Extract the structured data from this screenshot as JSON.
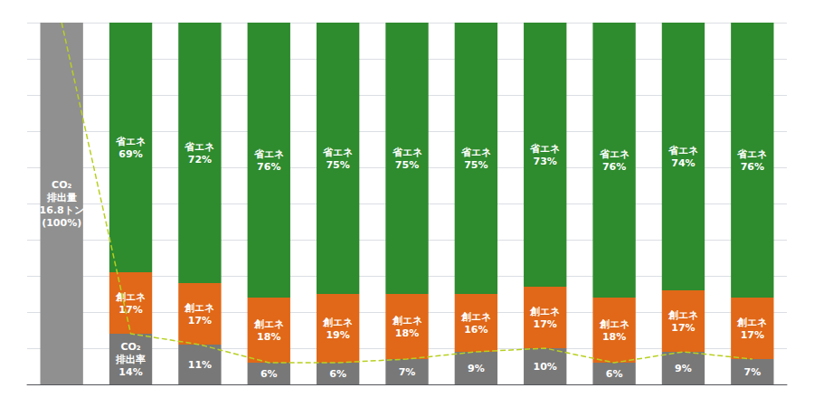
{
  "chart_data": {
    "type": "bar",
    "stacked": true,
    "grid": true,
    "tick_labels": false,
    "data_labels": true,
    "categories": [
      null,
      null,
      null,
      null,
      null,
      null,
      null,
      null,
      null,
      null,
      null
    ],
    "ylim": [
      0,
      100
    ],
    "yticks": [
      0,
      10,
      20,
      30,
      40,
      50,
      60,
      70,
      80,
      90,
      100
    ],
    "series": [
      {
        "color": "#909090",
        "values": [
          100,
          null,
          null,
          null,
          null,
          null,
          null,
          null,
          null,
          null,
          null
        ],
        "value_labels": [
          "CO₂\n排出量\n16.8トン\n(100%)",
          null,
          null,
          null,
          null,
          null,
          null,
          null,
          null,
          null,
          null
        ]
      },
      {
        "color": "#787878",
        "values": [
          null,
          14,
          11,
          6,
          6,
          7,
          9,
          10,
          6,
          9,
          7
        ],
        "value_labels": [
          null,
          "CO₂\n排出率\n14%",
          "11%",
          "6%",
          "6%",
          "7%",
          "9%",
          "10%",
          "6%",
          "9%",
          "7%"
        ]
      },
      {
        "color": "#e06818",
        "values": [
          null,
          17,
          17,
          18,
          19,
          18,
          16,
          17,
          18,
          17,
          17
        ],
        "value_labels": [
          null,
          "創エネ\n17%",
          "創エネ\n17%",
          "創エネ\n18%",
          "創エネ\n19%",
          "創エネ\n18%",
          "創エネ\n16%",
          "創エネ\n17%",
          "創エネ\n18%",
          "創エネ\n17%",
          "創エネ\n17%"
        ]
      },
      {
        "color": "#2e8b2e",
        "values": [
          null,
          69,
          72,
          76,
          75,
          75,
          75,
          73,
          76,
          74,
          76
        ],
        "value_labels": [
          null,
          "省エネ\n69%",
          "省エネ\n72%",
          "省エネ\n76%",
          "省エネ\n75%",
          "省エネ\n75%",
          "省エネ\n75%",
          "省エネ\n73%",
          "省エネ\n76%",
          "省エネ\n74%",
          "省エネ\n76%"
        ]
      },
      {
        "type": "line",
        "line_style": "dashed",
        "color": "#b8d020",
        "values": [
          100,
          14,
          11,
          6,
          6,
          7,
          9,
          10,
          6,
          9,
          7
        ]
      }
    ]
  }
}
